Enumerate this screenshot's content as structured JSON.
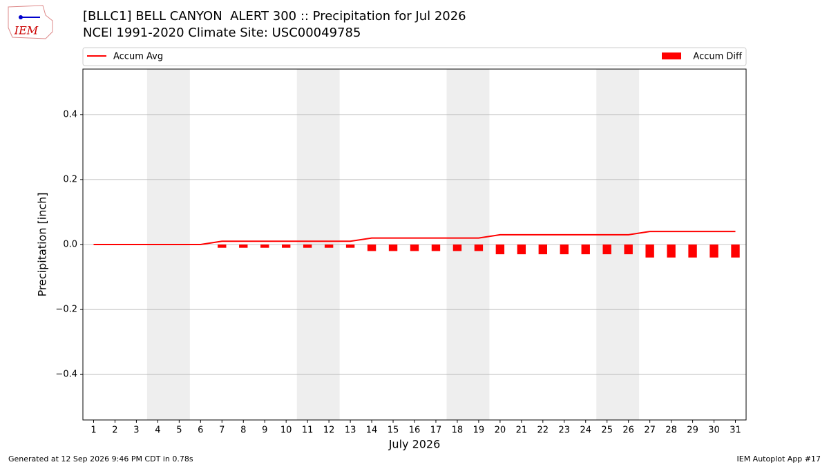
{
  "logo": "IEM",
  "footer": {
    "left": "Generated at 12 Sep 2026 9:46 PM CDT in 0.78s",
    "right": "IEM Autoplot App #17"
  },
  "chart_data": {
    "type": "bar",
    "title": "[BLLC1] BELL CANYON  ALERT 300 :: Precipitation for Jul 2026",
    "subtitle": "NCEI 1991-2020 Climate Site: USC00049785",
    "x_label": "July 2026",
    "y_label": "Precipitation [inch]",
    "x": [
      1,
      2,
      3,
      4,
      5,
      6,
      7,
      8,
      9,
      10,
      11,
      12,
      13,
      14,
      15,
      16,
      17,
      18,
      19,
      20,
      21,
      22,
      23,
      24,
      25,
      26,
      27,
      28,
      29,
      30,
      31
    ],
    "series": [
      {
        "name": "Accum Avg",
        "type": "line",
        "color": "#ff0000",
        "values": [
          0,
          0,
          0,
          0,
          0,
          0,
          0.01,
          0.01,
          0.01,
          0.01,
          0.01,
          0.01,
          0.01,
          0.02,
          0.02,
          0.02,
          0.02,
          0.02,
          0.02,
          0.03,
          0.03,
          0.03,
          0.03,
          0.03,
          0.03,
          0.03,
          0.04,
          0.04,
          0.04,
          0.04,
          0.04
        ]
      },
      {
        "name": "Accum Diff",
        "type": "bar",
        "color": "#ff0000",
        "values": [
          0,
          0,
          0,
          0,
          0,
          0,
          -0.01,
          -0.01,
          -0.01,
          -0.01,
          -0.01,
          -0.01,
          -0.01,
          -0.02,
          -0.02,
          -0.02,
          -0.02,
          -0.02,
          -0.02,
          -0.03,
          -0.03,
          -0.03,
          -0.03,
          -0.03,
          -0.03,
          -0.03,
          -0.04,
          -0.04,
          -0.04,
          -0.04,
          -0.04
        ]
      }
    ],
    "xlim": [
      0.5,
      31.5
    ],
    "xticks": [
      1,
      2,
      3,
      4,
      5,
      6,
      7,
      8,
      9,
      10,
      11,
      12,
      13,
      14,
      15,
      16,
      17,
      18,
      19,
      20,
      21,
      22,
      23,
      24,
      25,
      26,
      27,
      28,
      29,
      30,
      31
    ],
    "ylim": [
      -0.54,
      0.54
    ],
    "yticks": [
      {
        "value": -0.4,
        "label": "−0.4"
      },
      {
        "value": -0.2,
        "label": "−0.2"
      },
      {
        "value": 0,
        "label": "0.0"
      },
      0.2,
      0.4
    ],
    "grid": true,
    "shaded_spans": [
      [
        3.5,
        5.5
      ],
      [
        10.5,
        12.5
      ],
      [
        17.5,
        19.5
      ],
      [
        24.5,
        26.5
      ]
    ],
    "shade_color": "#eeeeee"
  }
}
